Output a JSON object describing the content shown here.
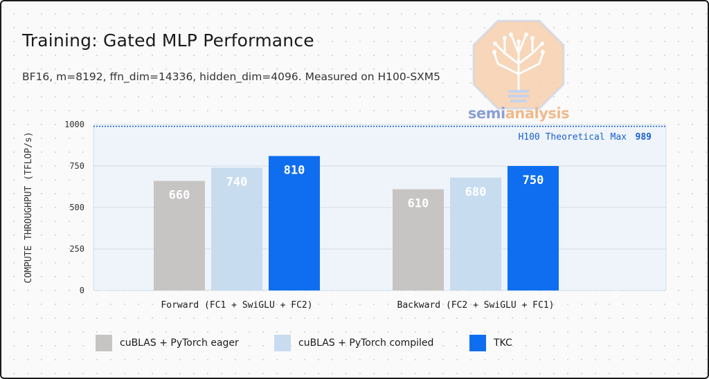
{
  "header": {
    "title": "Training: Gated MLP Performance",
    "subtitle": "BF16, m=8192, ffn_dim=14336, hidden_dim=4096. Measured on H100-SXM5"
  },
  "logo": {
    "text_a": "semi",
    "text_b": "analysis"
  },
  "colors": {
    "eager": "#c7c4c4",
    "compiled": "#c8dcf0",
    "tkc": "#0f6ef0",
    "accent": "#1a5fd0",
    "plot_bg": "#eef4fa"
  },
  "chart_data": {
    "type": "bar",
    "title": "Training: Gated MLP Performance",
    "ylabel": "COMPUTE THROUGHPUT (TFLOP/s)",
    "xlabel": "",
    "ylim": [
      0,
      1000
    ],
    "yticks": [
      "0",
      "250",
      "500",
      "750",
      "1000"
    ],
    "categories": [
      "Forward (FC1 + SwiGLU + FC2)",
      "Backward (FC2 + SwiGLU + FC1)"
    ],
    "series": [
      {
        "name": "cuBLAS + PyTorch eager",
        "values": [
          660,
          610
        ],
        "labels": [
          "660",
          "610"
        ]
      },
      {
        "name": "cuBLAS + PyTorch compiled",
        "values": [
          740,
          680
        ],
        "labels": [
          "740",
          "680"
        ]
      },
      {
        "name": "TKC",
        "values": [
          810,
          750
        ],
        "labels": [
          "810",
          "750"
        ]
      }
    ],
    "reference_line": {
      "label": "H100 Theoretical Max",
      "value": 989,
      "value_label": "989"
    },
    "grid": true,
    "legend": "bottom"
  }
}
